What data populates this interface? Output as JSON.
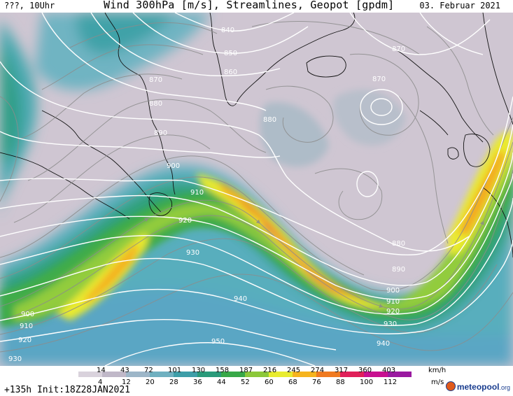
{
  "header": {
    "left_text": "???, 10Uhr",
    "title": "Wind 300hPa [m/s], Streamlines, Geopot [gpdm]",
    "date": "03. Februar 2021"
  },
  "footer": {
    "run_info": "+135h Init:18Z28JAN2021",
    "logo_text": "meteopool",
    "logo_suffix": ".org"
  },
  "colorbar": {
    "kmh_labels": [
      "14",
      "43",
      "72",
      "101",
      "130",
      "158",
      "187",
      "216",
      "245",
      "274",
      "317",
      "360",
      "403"
    ],
    "kmh_unit": "km/h",
    "ms_labels": [
      "4",
      "12",
      "20",
      "28",
      "36",
      "44",
      "52",
      "60",
      "68",
      "76",
      "88",
      "100",
      "112"
    ],
    "ms_unit": "m/s",
    "colors": [
      "#d9d2dc",
      "#c0b8c8",
      "#9db6c8",
      "#6fb0c0",
      "#3e9ea8",
      "#2a9a7a",
      "#38a848",
      "#8cc83a",
      "#e8ec30",
      "#f6b41e",
      "#f07a20",
      "#e0205a",
      "#c81090",
      "#9a1aa0"
    ]
  },
  "contour_labels": [
    {
      "text": "840"
    },
    {
      "text": "850"
    },
    {
      "text": "860"
    },
    {
      "text": "870"
    },
    {
      "text": "880"
    },
    {
      "text": "890"
    },
    {
      "text": "900"
    },
    {
      "text": "910"
    },
    {
      "text": "920"
    },
    {
      "text": "930"
    },
    {
      "text": "940"
    },
    {
      "text": "950"
    },
    {
      "text": "880"
    },
    {
      "text": "870"
    },
    {
      "text": "880"
    },
    {
      "text": "890"
    },
    {
      "text": "900"
    },
    {
      "text": "910"
    },
    {
      "text": "920"
    },
    {
      "text": "930"
    },
    {
      "text": "940"
    },
    {
      "text": "900"
    },
    {
      "text": "910"
    },
    {
      "text": "920"
    },
    {
      "text": "930"
    },
    {
      "text": "870"
    }
  ]
}
